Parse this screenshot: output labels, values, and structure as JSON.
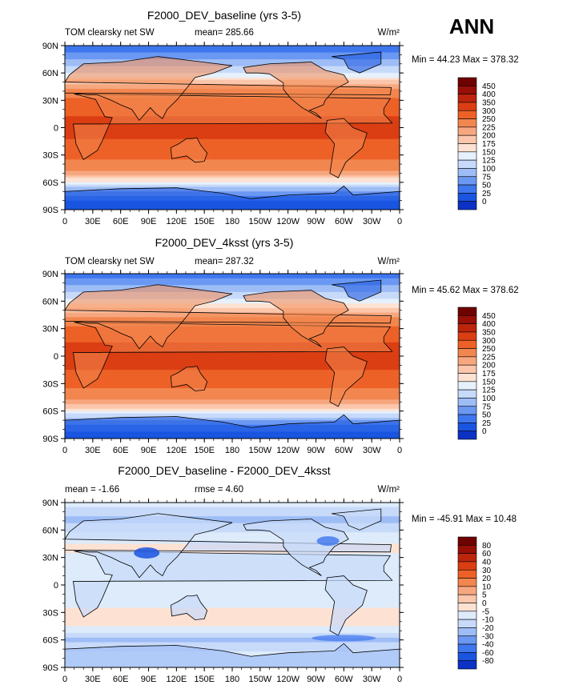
{
  "season": "ANN",
  "colors": {
    "levels_sw": [
      "#00008f",
      "#0b32c4",
      "#1a55e0",
      "#3e76ee",
      "#6a98f2",
      "#9ebdf6",
      "#c7dafa",
      "#e6f1fd",
      "#fde2d3",
      "#fbc6ab",
      "#f7a77f",
      "#f2864f",
      "#ed6127",
      "#db3e12",
      "#bc250b",
      "#970f06",
      "#6e0200"
    ],
    "levels_diff": [
      "#00008f",
      "#0b32c4",
      "#1a55e0",
      "#3e76ee",
      "#6a98f2",
      "#9ebdf6",
      "#c7dafa",
      "#ddebfb",
      "#fde2d3",
      "#fbc6ab",
      "#f7a77f",
      "#f2864f",
      "#ed6127",
      "#db3e12",
      "#bc250b",
      "#970f06",
      "#6e0200"
    ]
  },
  "chart_data": [
    {
      "type": "heatmap",
      "title": "F2000_DEV_baseline (yrs 3-5)",
      "left_label": "TOM clearsky net SW",
      "stat_label": "mean= 285.66",
      "units": "W/m²",
      "min_max": "Min =  44.23 Max = 378.32",
      "min": 44.23,
      "max": 378.32,
      "mean": 285.66,
      "xticks": [
        "0",
        "30E",
        "60E",
        "90E",
        "120E",
        "150E",
        "180",
        "150W",
        "120W",
        "90W",
        "60W",
        "30W",
        "0"
      ],
      "yticks": [
        "90N",
        "60N",
        "30N",
        "0",
        "30S",
        "60S",
        "90S"
      ],
      "colorbar_labels": [
        "450",
        "400",
        "350",
        "300",
        "250",
        "225",
        "200",
        "175",
        "150",
        "125",
        "100",
        "75",
        "50",
        "25",
        "0"
      ],
      "zonal_profile": {
        "lat": [
          90,
          80,
          70,
          60,
          50,
          40,
          30,
          20,
          10,
          0,
          -10,
          -20,
          -30,
          -40,
          -50,
          -60,
          -70,
          -80,
          -90
        ],
        "value": [
          55,
          85,
          115,
          150,
          210,
          265,
          315,
          340,
          355,
          360,
          355,
          340,
          315,
          280,
          235,
          170,
          90,
          50,
          45
        ]
      }
    },
    {
      "type": "heatmap",
      "title": "F2000_DEV_4ksst (yrs 3-5)",
      "left_label": "TOM clearsky net SW",
      "stat_label": "mean= 287.32",
      "units": "W/m²",
      "min_max": "Min =  45.62 Max = 378.62",
      "min": 45.62,
      "max": 378.62,
      "mean": 287.32,
      "xticks": [
        "0",
        "30E",
        "60E",
        "90E",
        "120E",
        "150E",
        "180",
        "150W",
        "120W",
        "90W",
        "60W",
        "30W",
        "0"
      ],
      "yticks": [
        "90N",
        "60N",
        "30N",
        "0",
        "30S",
        "60S",
        "90S"
      ],
      "colorbar_labels": [
        "450",
        "400",
        "350",
        "300",
        "250",
        "225",
        "200",
        "175",
        "150",
        "125",
        "100",
        "75",
        "50",
        "25",
        "0"
      ],
      "zonal_profile": {
        "lat": [
          90,
          80,
          70,
          60,
          50,
          40,
          30,
          20,
          10,
          0,
          -10,
          -20,
          -30,
          -40,
          -50,
          -60,
          -70,
          -80,
          -90
        ],
        "value": [
          55,
          90,
          125,
          160,
          215,
          268,
          316,
          341,
          356,
          361,
          356,
          341,
          317,
          283,
          240,
          178,
          95,
          52,
          46
        ]
      }
    },
    {
      "type": "heatmap",
      "title": "F2000_DEV_baseline - F2000_DEV_4ksst",
      "left_label": "mean =   -1.66",
      "stat_label": "rmse =    4.60",
      "units": "W/m²",
      "min_max": "Min = -45.91 Max =  10.48",
      "min": -45.91,
      "max": 10.48,
      "mean": -1.66,
      "rmse": 4.6,
      "xticks": [
        "0",
        "30E",
        "60E",
        "90E",
        "120E",
        "150E",
        "180",
        "150W",
        "120W",
        "90W",
        "60W",
        "30W",
        "0"
      ],
      "yticks": [
        "90N",
        "60N",
        "30N",
        "0",
        "30S",
        "60S",
        "90S"
      ],
      "colorbar_labels": [
        "80",
        "60",
        "40",
        "30",
        "20",
        "10",
        "5",
        "0",
        "-5",
        "-10",
        "-20",
        "-30",
        "-40",
        "-60",
        "-80"
      ],
      "zonal_profile": {
        "lat": [
          90,
          80,
          70,
          60,
          50,
          40,
          30,
          20,
          10,
          0,
          -10,
          -20,
          -30,
          -40,
          -50,
          -60,
          -70,
          -80,
          -90
        ],
        "value": [
          -3,
          -8,
          -12,
          -6,
          -3,
          2,
          -2,
          -1,
          -1,
          -1,
          -1,
          -2,
          2,
          3,
          -2,
          -12,
          -6,
          -2,
          -1
        ]
      }
    }
  ]
}
